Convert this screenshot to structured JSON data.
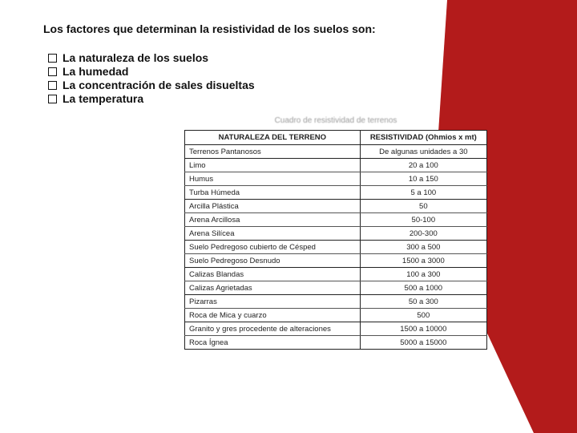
{
  "colors": {
    "accent_red": "#b31b1b",
    "text": "#111111",
    "table_border": "#222222",
    "caption_gray": "#9a9a9a",
    "background": "#ffffff"
  },
  "title": "Los factores que determinan la resistividad de los suelos son:",
  "bullets": [
    "La naturaleza de los suelos",
    "La humedad",
    "La concentración de sales disueltas",
    "La temperatura"
  ],
  "table": {
    "caption": "Cuadro de resistividad de terrenos",
    "columns": [
      "NATURALEZA DEL TERRENO",
      "RESISTIVIDAD (Ohmios x mt)"
    ],
    "rows": [
      [
        "Terrenos Pantanosos",
        "De algunas unidades a 30"
      ],
      [
        "Limo",
        "20 a 100"
      ],
      [
        "Humus",
        "10 a 150"
      ],
      [
        "Turba Húmeda",
        "5 a 100"
      ],
      [
        "Arcilla Plástica",
        "50"
      ],
      [
        "Arena Arcillosa",
        "50-100"
      ],
      [
        "Arena Silícea",
        "200-300"
      ],
      [
        "Suelo Pedregoso cubierto de Césped",
        "300 a 500"
      ],
      [
        "Suelo Pedregoso Desnudo",
        "1500 a 3000"
      ],
      [
        "Calizas Blandas",
        "100 a 300"
      ],
      [
        "Calizas Agrietadas",
        "500 a 1000"
      ],
      [
        "Pizarras",
        "50 a 300"
      ],
      [
        "Roca de Mica y cuarzo",
        "500"
      ],
      [
        "Granito y gres procedente de alteraciones",
        "1500 a 10000"
      ],
      [
        "Roca Ígnea",
        "5000 a 15000"
      ]
    ],
    "separator_after_rows": [
      0,
      3,
      6,
      8,
      10,
      12
    ]
  }
}
